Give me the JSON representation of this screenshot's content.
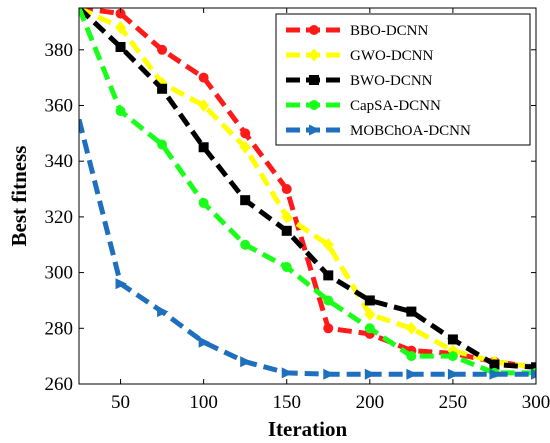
{
  "chart_data": {
    "type": "line",
    "title": "",
    "xlabel": "Iteration",
    "ylabel": "Best fitness",
    "xlim": [
      25,
      300
    ],
    "ylim": [
      260,
      395
    ],
    "xticks": [
      50,
      100,
      150,
      200,
      250,
      300
    ],
    "yticks": [
      260,
      280,
      300,
      320,
      340,
      360,
      380
    ],
    "grid": false,
    "legend_position": "top-right",
    "series": [
      {
        "name": "BBO-DCNN",
        "color": "#ff1a1a",
        "marker": "circle",
        "x": [
          25,
          50,
          75,
          100,
          125,
          150,
          175,
          200,
          225,
          250,
          275,
          300
        ],
        "y": [
          395,
          393,
          380,
          370,
          350,
          330,
          280,
          278,
          272,
          271,
          268,
          266
        ]
      },
      {
        "name": "GWO-DCNN",
        "color": "#ffff00",
        "marker": "diamond",
        "x": [
          25,
          50,
          75,
          100,
          125,
          150,
          175,
          200,
          225,
          250,
          275,
          300
        ],
        "y": [
          395,
          388,
          368,
          360,
          345,
          320,
          310,
          285,
          280,
          272,
          268,
          266
        ]
      },
      {
        "name": "BWO-DCNN",
        "color": "#000000",
        "marker": "square",
        "x": [
          25,
          50,
          75,
          100,
          125,
          150,
          175,
          200,
          225,
          250,
          275,
          300
        ],
        "y": [
          395,
          381,
          366,
          345,
          326,
          315,
          299,
          290,
          286,
          276,
          267,
          266
        ]
      },
      {
        "name": "CapSA-DCNN",
        "color": "#1aff1a",
        "marker": "circle",
        "x": [
          25,
          50,
          75,
          100,
          125,
          150,
          175,
          200,
          225,
          250,
          275,
          300
        ],
        "y": [
          395,
          358,
          346,
          325,
          310,
          302,
          290,
          280,
          270,
          270,
          264,
          264
        ]
      },
      {
        "name": "MOBChOA-DCNN",
        "color": "#1e6fbd",
        "marker": "triangle-right",
        "x": [
          25,
          50,
          75,
          100,
          125,
          150,
          175,
          200,
          225,
          250,
          275,
          300
        ],
        "y": [
          355,
          296,
          286,
          275,
          268,
          264,
          263.5,
          263.5,
          263.5,
          263.5,
          263.5,
          263.5
        ]
      }
    ]
  }
}
